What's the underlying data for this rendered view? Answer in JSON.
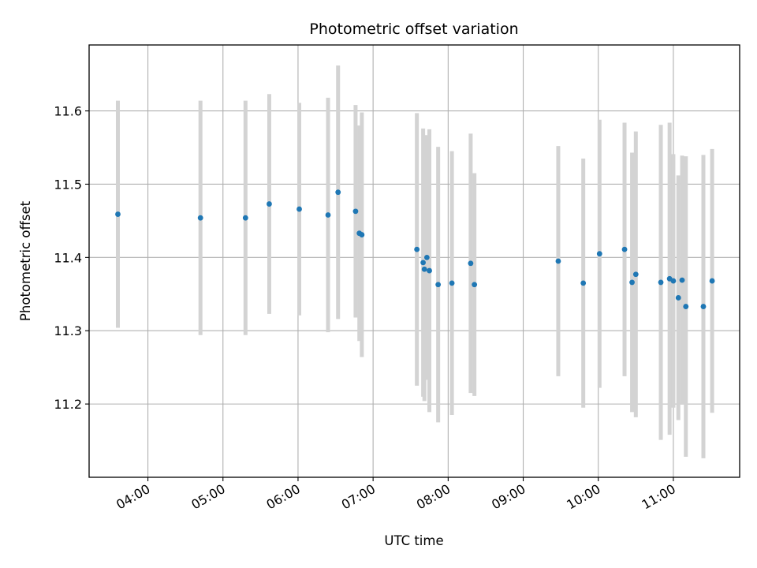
{
  "chart_data": {
    "type": "scatter",
    "title": "Photometric offset variation",
    "xlabel": "UTC time",
    "ylabel": "Photometric offset",
    "x_format": "HH:MM",
    "xlim": [
      "03:13",
      "11:53"
    ],
    "ylim": [
      11.1,
      11.69
    ],
    "x_ticks": [
      "04:00",
      "05:00",
      "06:00",
      "07:00",
      "08:00",
      "09:00",
      "10:00",
      "11:00"
    ],
    "y_ticks": [
      11.2,
      11.3,
      11.4,
      11.5,
      11.6
    ],
    "grid": true,
    "marker_color": "#1f77b4",
    "errorbar_color": "#d3d3d3",
    "points": [
      {
        "x": "03:36",
        "y": 11.459,
        "err": 0.155
      },
      {
        "x": "04:42",
        "y": 11.454,
        "err": 0.16
      },
      {
        "x": "05:18",
        "y": 11.454,
        "err": 0.16
      },
      {
        "x": "05:37",
        "y": 11.473,
        "err": 0.15
      },
      {
        "x": "06:01",
        "y": 11.466,
        "err": 0.145
      },
      {
        "x": "06:24",
        "y": 11.458,
        "err": 0.16
      },
      {
        "x": "06:32",
        "y": 11.489,
        "err": 0.173
      },
      {
        "x": "06:46",
        "y": 11.463,
        "err": 0.145
      },
      {
        "x": "06:49",
        "y": 11.433,
        "err": 0.147
      },
      {
        "x": "06:51",
        "y": 11.431,
        "err": 0.167
      },
      {
        "x": "07:35",
        "y": 11.411,
        "err": 0.186
      },
      {
        "x": "07:40",
        "y": 11.393,
        "err": 0.183
      },
      {
        "x": "07:41",
        "y": 11.384,
        "err": 0.18
      },
      {
        "x": "07:43",
        "y": 11.4,
        "err": 0.167
      },
      {
        "x": "07:45",
        "y": 11.382,
        "err": 0.193
      },
      {
        "x": "07:52",
        "y": 11.363,
        "err": 0.188
      },
      {
        "x": "08:03",
        "y": 11.365,
        "err": 0.18
      },
      {
        "x": "08:18",
        "y": 11.392,
        "err": 0.177
      },
      {
        "x": "08:21",
        "y": 11.363,
        "err": 0.152
      },
      {
        "x": "09:28",
        "y": 11.395,
        "err": 0.157
      },
      {
        "x": "09:48",
        "y": 11.365,
        "err": 0.17
      },
      {
        "x": "10:01",
        "y": 11.405,
        "err": 0.183
      },
      {
        "x": "10:21",
        "y": 11.411,
        "err": 0.173
      },
      {
        "x": "10:27",
        "y": 11.366,
        "err": 0.177
      },
      {
        "x": "10:30",
        "y": 11.377,
        "err": 0.195
      },
      {
        "x": "10:50",
        "y": 11.366,
        "err": 0.215
      },
      {
        "x": "10:57",
        "y": 11.371,
        "err": 0.213
      },
      {
        "x": "11:00",
        "y": 11.368,
        "err": 0.173
      },
      {
        "x": "11:04",
        "y": 11.345,
        "err": 0.167
      },
      {
        "x": "11:07",
        "y": 11.369,
        "err": 0.17
      },
      {
        "x": "11:10",
        "y": 11.333,
        "err": 0.205
      },
      {
        "x": "11:24",
        "y": 11.333,
        "err": 0.207
      },
      {
        "x": "11:31",
        "y": 11.368,
        "err": 0.18
      }
    ]
  }
}
